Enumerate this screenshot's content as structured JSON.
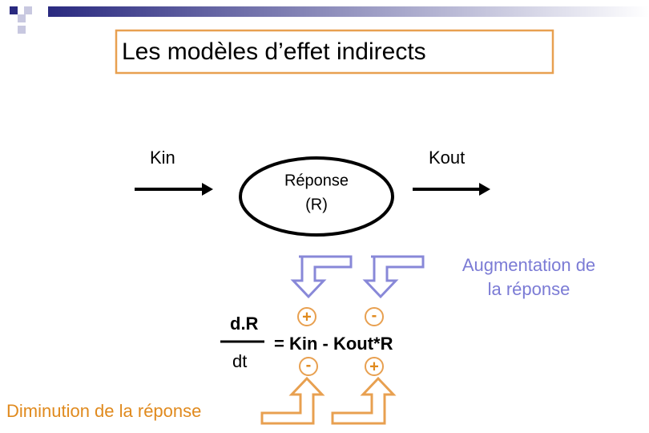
{
  "title": "Les modèles d’effet indirects",
  "nodes": {
    "kin": "Kin",
    "kout": "Kout",
    "response": {
      "line1": "Réponse",
      "line2": "(R)"
    }
  },
  "annotations": {
    "increase": {
      "line1": "Augmentation de",
      "line2": "la réponse"
    },
    "decrease": "Diminution de la réponse"
  },
  "equation": {
    "numerator": "d.R",
    "denominator": "dt",
    "rhs": "= Kin - Kout*R",
    "signs_top": [
      "+",
      "-"
    ],
    "signs_bottom": [
      "-",
      "+"
    ]
  }
}
